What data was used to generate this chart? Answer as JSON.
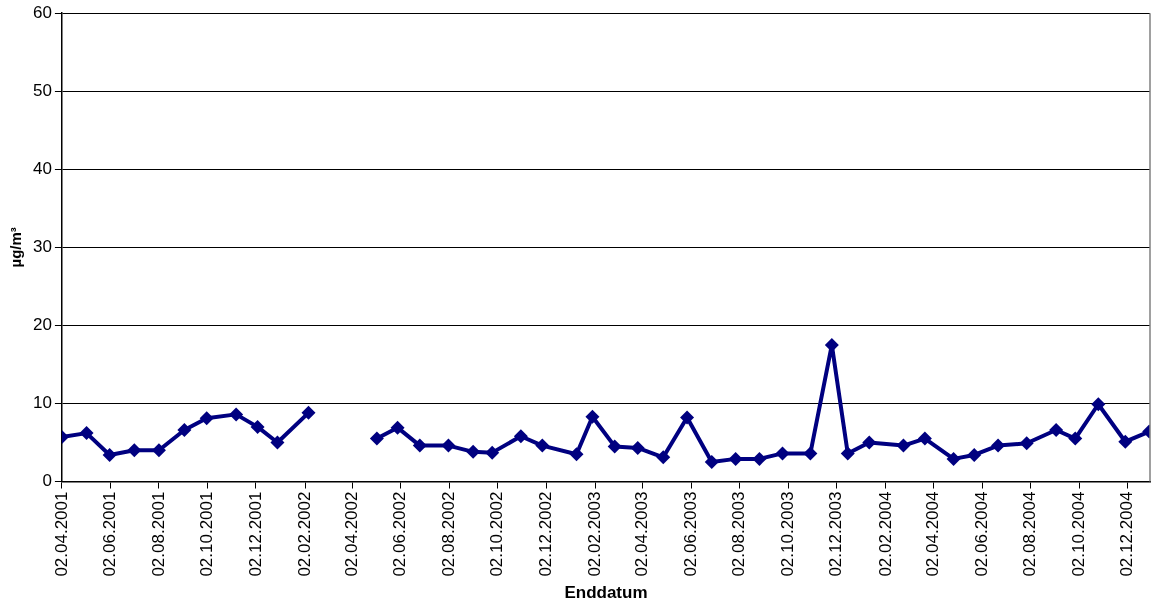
{
  "chart_data": {
    "type": "line",
    "xlabel": "Enddatum",
    "ylabel": "µg/m³",
    "x": [
      "2001-04-02",
      "2001-05-03",
      "2001-06-01",
      "2001-07-02",
      "2001-08-02",
      "2001-09-03",
      "2001-10-01",
      "2001-11-07",
      "2001-12-04",
      "2001-12-29",
      "2002-02-06",
      "2002-04-01",
      "2002-05-03",
      "2002-05-29",
      "2002-06-26",
      "2002-08-01",
      "2002-09-01",
      "2002-09-25",
      "2002-10-31",
      "2002-11-27",
      "2003-01-09",
      "2003-01-29",
      "2003-02-26",
      "2003-03-27",
      "2003-04-28",
      "2003-05-28",
      "2003-06-28",
      "2003-07-28",
      "2003-08-27",
      "2003-09-25",
      "2003-10-30",
      "2003-11-26",
      "2003-12-16",
      "2004-01-12",
      "2004-02-24",
      "2004-03-22",
      "2004-04-27",
      "2004-05-23",
      "2004-06-22",
      "2004-07-28",
      "2004-09-03",
      "2004-09-27",
      "2004-10-26",
      "2004-11-29",
      "2004-12-29"
    ],
    "series": [
      {
        "color": "#000080",
        "values": [
          5.7,
          6.2,
          3.4,
          4.0,
          4.0,
          6.6,
          8.1,
          8.6,
          7.0,
          5.0,
          8.8,
          null,
          5.5,
          6.9,
          4.6,
          4.6,
          3.8,
          3.7,
          5.8,
          4.6,
          3.5,
          8.3,
          4.5,
          4.3,
          3.1,
          8.2,
          2.5,
          2.9,
          2.9,
          3.6,
          3.6,
          17.5,
          3.6,
          5.0,
          4.6,
          5.5,
          2.9,
          3.4,
          4.6,
          4.9,
          6.6,
          5.5,
          9.9,
          5.1,
          6.4
        ]
      }
    ],
    "xlim": [
      "2001-04-02",
      "2004-12-30"
    ],
    "xticks": [
      {
        "value": "2001-04-02",
        "label": "02.04.2001"
      },
      {
        "value": "2001-06-02",
        "label": "02.06.2001"
      },
      {
        "value": "2001-08-02",
        "label": "02.08.2001"
      },
      {
        "value": "2001-10-02",
        "label": "02.10.2001"
      },
      {
        "value": "2001-12-02",
        "label": "02.12.2001"
      },
      {
        "value": "2002-02-02",
        "label": "02.02.2002"
      },
      {
        "value": "2002-04-02",
        "label": "02.04.2002"
      },
      {
        "value": "2002-06-02",
        "label": "02.06.2002"
      },
      {
        "value": "2002-08-02",
        "label": "02.08.2002"
      },
      {
        "value": "2002-10-02",
        "label": "02.10.2002"
      },
      {
        "value": "2002-12-02",
        "label": "02.12.2002"
      },
      {
        "value": "2003-02-02",
        "label": "02.02.2003"
      },
      {
        "value": "2003-04-02",
        "label": "02.04.2003"
      },
      {
        "value": "2003-06-02",
        "label": "02.06.2003"
      },
      {
        "value": "2003-08-02",
        "label": "02.08.2003"
      },
      {
        "value": "2003-10-02",
        "label": "02.10.2003"
      },
      {
        "value": "2003-12-02",
        "label": "02.12.2003"
      },
      {
        "value": "2004-02-02",
        "label": "02.02.2004"
      },
      {
        "value": "2004-04-02",
        "label": "02.04.2004"
      },
      {
        "value": "2004-06-02",
        "label": "02.06.2004"
      },
      {
        "value": "2004-08-02",
        "label": "02.08.2004"
      },
      {
        "value": "2004-10-02",
        "label": "02.10.2004"
      },
      {
        "value": "2004-12-02",
        "label": "02.12.2004"
      }
    ],
    "ylim": [
      0,
      60
    ],
    "yticks": [
      0,
      10,
      20,
      30,
      40,
      50,
      60
    ],
    "grid": "y",
    "legend": false,
    "marker": "diamond",
    "line_style": "solid"
  }
}
